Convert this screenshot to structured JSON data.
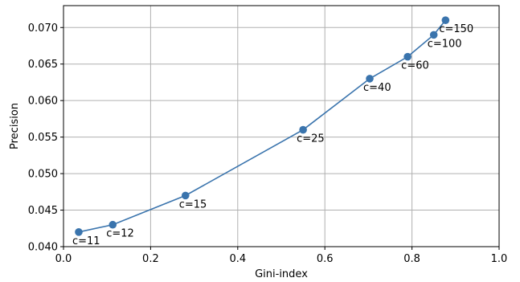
{
  "chart_data": {
    "type": "line",
    "title": "",
    "xlabel": "Gini-index",
    "ylabel": "Precision",
    "xlim": [
      0.0,
      1.0
    ],
    "ylim": [
      0.04,
      0.073
    ],
    "xticks": [
      0.0,
      0.2,
      0.4,
      0.6,
      0.8,
      1.0
    ],
    "xtick_labels": [
      "0.0",
      "0.2",
      "0.4",
      "0.6",
      "0.8",
      "1.0"
    ],
    "yticks": [
      0.04,
      0.045,
      0.05,
      0.055,
      0.06,
      0.065,
      0.07
    ],
    "ytick_labels": [
      "0.040",
      "0.045",
      "0.050",
      "0.055",
      "0.060",
      "0.065",
      "0.070"
    ],
    "grid": true,
    "legend": null,
    "series": [
      {
        "color": "#3a74ad",
        "marker": "circle",
        "points": [
          {
            "x": 0.035,
            "y": 0.042,
            "label": "c=11"
          },
          {
            "x": 0.113,
            "y": 0.043,
            "label": "c=12"
          },
          {
            "x": 0.28,
            "y": 0.047,
            "label": "c=15"
          },
          {
            "x": 0.55,
            "y": 0.056,
            "label": "c=25"
          },
          {
            "x": 0.703,
            "y": 0.063,
            "label": "c=40"
          },
          {
            "x": 0.79,
            "y": 0.066,
            "label": "c=60"
          },
          {
            "x": 0.85,
            "y": 0.069,
            "label": "c=100"
          },
          {
            "x": 0.877,
            "y": 0.071,
            "label": "c=150"
          }
        ]
      }
    ]
  },
  "colors": {
    "line": "#3a74ad",
    "grid": "#b0b0b0",
    "axes": "#000000"
  }
}
